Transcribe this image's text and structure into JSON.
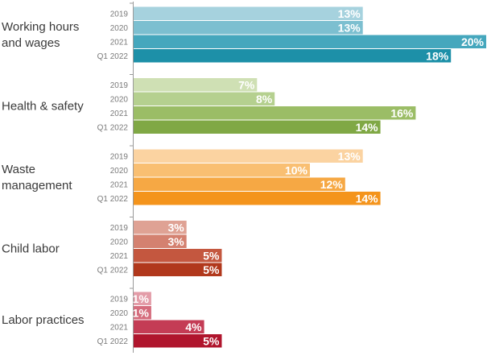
{
  "chart_data": {
    "type": "bar",
    "orientation": "horizontal",
    "years": [
      "2019",
      "2020",
      "2021",
      "Q1 2022"
    ],
    "xlim": [
      0,
      20
    ],
    "grid": false,
    "legend": "none",
    "groups": [
      {
        "label_lines": [
          "Working hours",
          "and wages"
        ],
        "values": [
          13,
          13,
          20,
          18
        ],
        "value_labels": [
          "13%",
          "13%",
          "20%",
          "18%"
        ],
        "colors": [
          "#a6d2de",
          "#7cbfd0",
          "#45a7bd",
          "#1d90a8"
        ]
      },
      {
        "label_lines": [
          "Health & safety"
        ],
        "values": [
          7,
          8,
          16,
          14
        ],
        "value_labels": [
          "7%",
          "8%",
          "16%",
          "14%"
        ],
        "colors": [
          "#cfe0b4",
          "#b5d08f",
          "#9bbd66",
          "#80a845"
        ]
      },
      {
        "label_lines": [
          "Waste",
          "management"
        ],
        "values": [
          13,
          10,
          12,
          14
        ],
        "value_labels": [
          "13%",
          "10%",
          "12%",
          "14%"
        ],
        "colors": [
          "#fbd3a1",
          "#f9bf72",
          "#f6a844",
          "#f4941c"
        ]
      },
      {
        "label_lines": [
          "Child labor"
        ],
        "values": [
          3,
          3,
          5,
          5
        ],
        "value_labels": [
          "3%",
          "3%",
          "5%",
          "5%"
        ],
        "colors": [
          "#dfa294",
          "#d48170",
          "#c4573f",
          "#b1381c"
        ]
      },
      {
        "label_lines": [
          "Labor practices"
        ],
        "values": [
          1,
          1,
          4,
          5
        ],
        "value_labels": [
          "1%",
          "1%",
          "4%",
          "5%"
        ],
        "colors": [
          "#e39ca8",
          "#d56c7d",
          "#c43c55",
          "#b0152d"
        ]
      }
    ]
  }
}
